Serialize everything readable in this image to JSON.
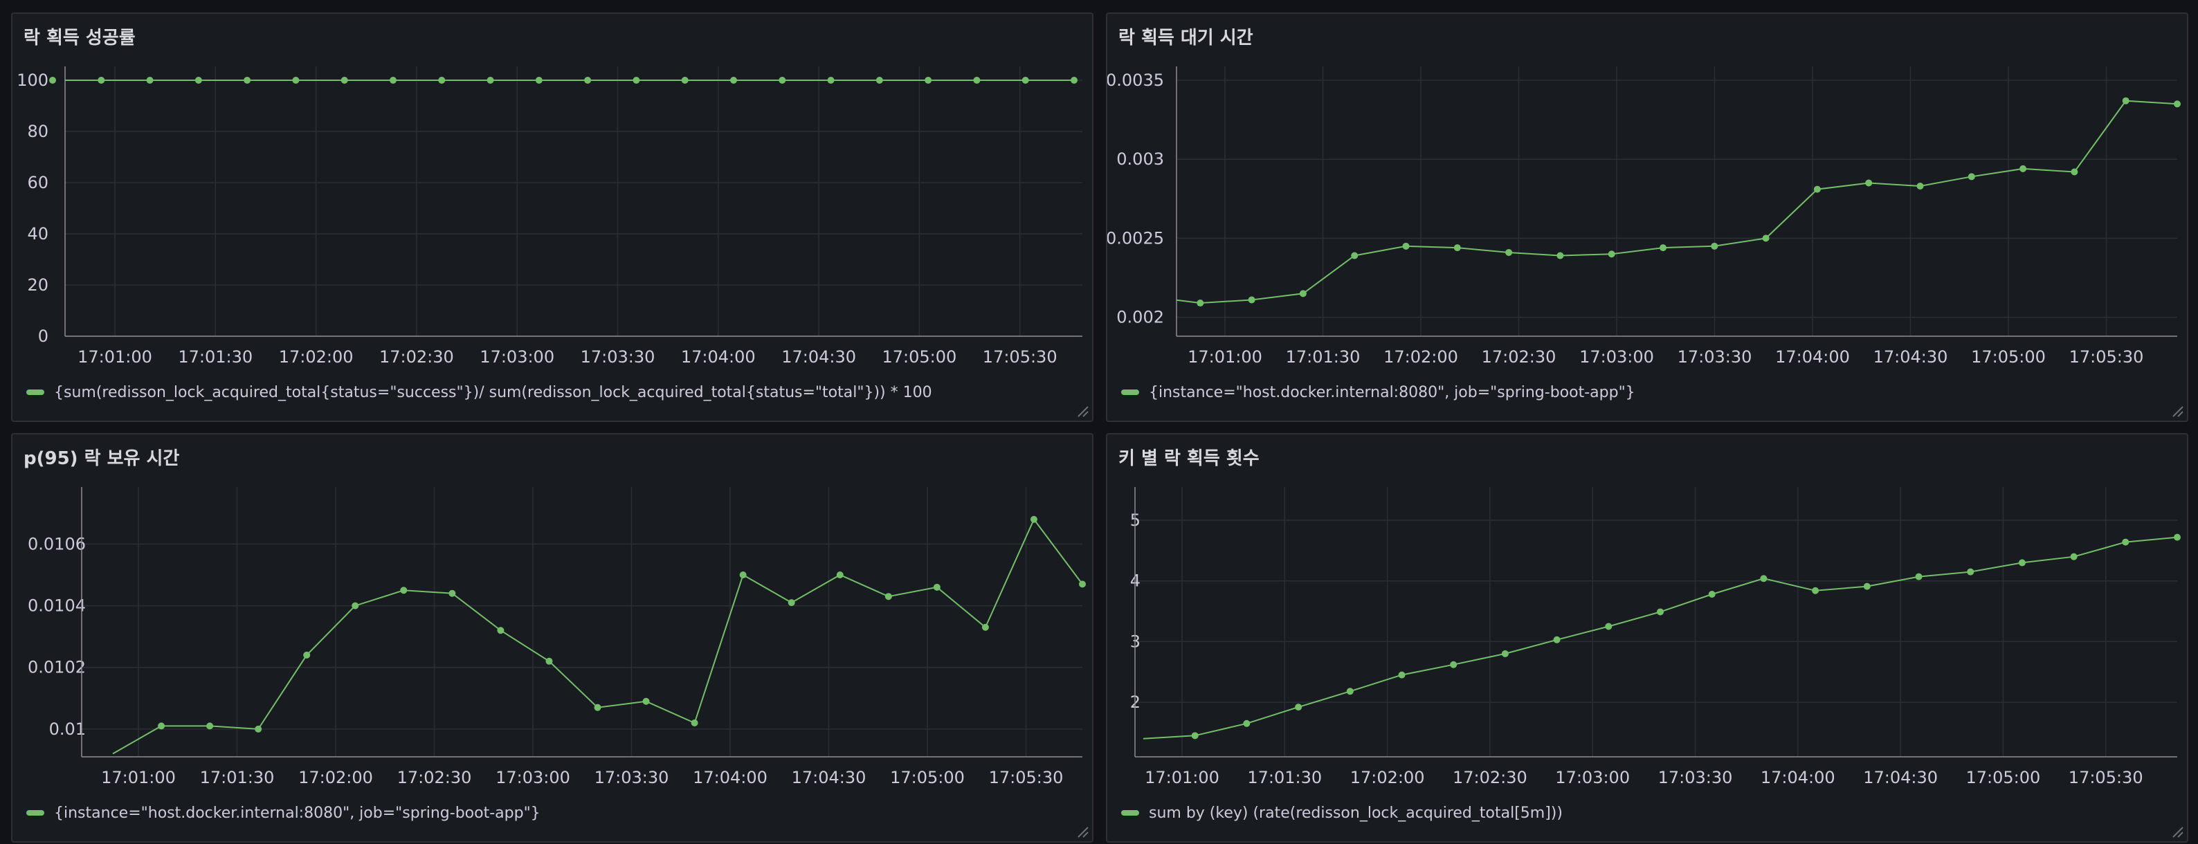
{
  "colors": {
    "series": "#73bf69",
    "grid": "#2b2e35",
    "axis": "#8e8e95",
    "text": "#ccccdc"
  },
  "icons": {
    "resize": "resize-handle-icon"
  },
  "panels": [
    {
      "title": "락 획득 성공률",
      "legend": "{sum(redisson_lock_acquired_total{status=\"success\"})/ sum(redisson_lock_acquired_total{status=\"total\"})) * 100",
      "chart_data": {
        "type": "line",
        "x_ticks": [
          "17:01:00",
          "17:01:30",
          "17:02:00",
          "17:02:30",
          "17:03:00",
          "17:03:30",
          "17:04:00",
          "17:04:30",
          "17:05:00",
          "17:05:30"
        ],
        "y_ticks": [
          "0",
          "20",
          "40",
          "60",
          "80",
          "100"
        ],
        "ylim": [
          0,
          100
        ],
        "grid": true,
        "series": [
          {
            "values": [
              100,
              100,
              100,
              100,
              100,
              100,
              100,
              100,
              100,
              100,
              100,
              100,
              100,
              100,
              100,
              100,
              100,
              100,
              100,
              100,
              100,
              100
            ]
          }
        ]
      }
    },
    {
      "title": "락 획득 대기 시간",
      "legend": "{instance=\"host.docker.internal:8080\", job=\"spring-boot-app\"}",
      "chart_data": {
        "type": "line",
        "x_ticks": [
          "17:01:00",
          "17:01:30",
          "17:02:00",
          "17:02:30",
          "17:03:00",
          "17:03:30",
          "17:04:00",
          "17:04:30",
          "17:05:00",
          "17:05:30"
        ],
        "y_ticks": [
          "0.002",
          "0.0025",
          "0.003",
          "0.0035"
        ],
        "ylim": [
          0.00188,
          0.0035
        ],
        "grid": true,
        "series": [
          {
            "values": [
              0.00213,
              0.00209,
              0.00211,
              0.00215,
              0.00239,
              0.00245,
              0.00244,
              0.00241,
              0.00239,
              0.0024,
              0.00244,
              0.00245,
              0.0025,
              0.00281,
              0.00285,
              0.00283,
              0.00289,
              0.00294,
              0.00292,
              0.00337,
              0.00335
            ]
          }
        ]
      }
    },
    {
      "title": "p(95) 락 보유 시간",
      "legend": "{instance=\"host.docker.internal:8080\", job=\"spring-boot-app\"}",
      "chart_data": {
        "type": "line",
        "x_ticks": [
          "17:01:00",
          "17:01:30",
          "17:02:00",
          "17:02:30",
          "17:03:00",
          "17:03:30",
          "17:04:00",
          "17:04:30",
          "17:05:00",
          "17:05:30"
        ],
        "y_ticks": [
          "0.01",
          "0.0102",
          "0.0104",
          "0.0106"
        ],
        "ylim": [
          0.00991,
          0.01074
        ],
        "grid": true,
        "series": [
          {
            "values": [
              0.00992,
              0.01001,
              0.01001,
              0.01,
              0.01024,
              0.0104,
              0.01045,
              0.01044,
              0.01032,
              0.01022,
              0.01007,
              0.01009,
              0.01002,
              0.0105,
              0.01041,
              0.0105,
              0.01043,
              0.01046,
              0.01033,
              0.01068,
              0.01047
            ]
          }
        ]
      }
    },
    {
      "title": "키 별 락 획득 횟수",
      "legend": "sum by (key) (rate(redisson_lock_acquired_total[5m]))",
      "chart_data": {
        "type": "line",
        "x_ticks": [
          "17:01:00",
          "17:01:30",
          "17:02:00",
          "17:02:30",
          "17:03:00",
          "17:03:30",
          "17:04:00",
          "17:04:30",
          "17:05:00",
          "17:05:30"
        ],
        "y_ticks": [
          "2",
          "3",
          "4",
          "5"
        ],
        "ylim": [
          1.1,
          5.32
        ],
        "grid": true,
        "series": [
          {
            "values": [
              1.4,
              1.45,
              1.65,
              1.92,
              2.18,
              2.45,
              2.62,
              2.8,
              3.03,
              3.25,
              3.49,
              3.78,
              4.04,
              3.84,
              3.91,
              4.07,
              4.15,
              4.3,
              4.4,
              4.64,
              4.72
            ]
          }
        ]
      }
    }
  ]
}
